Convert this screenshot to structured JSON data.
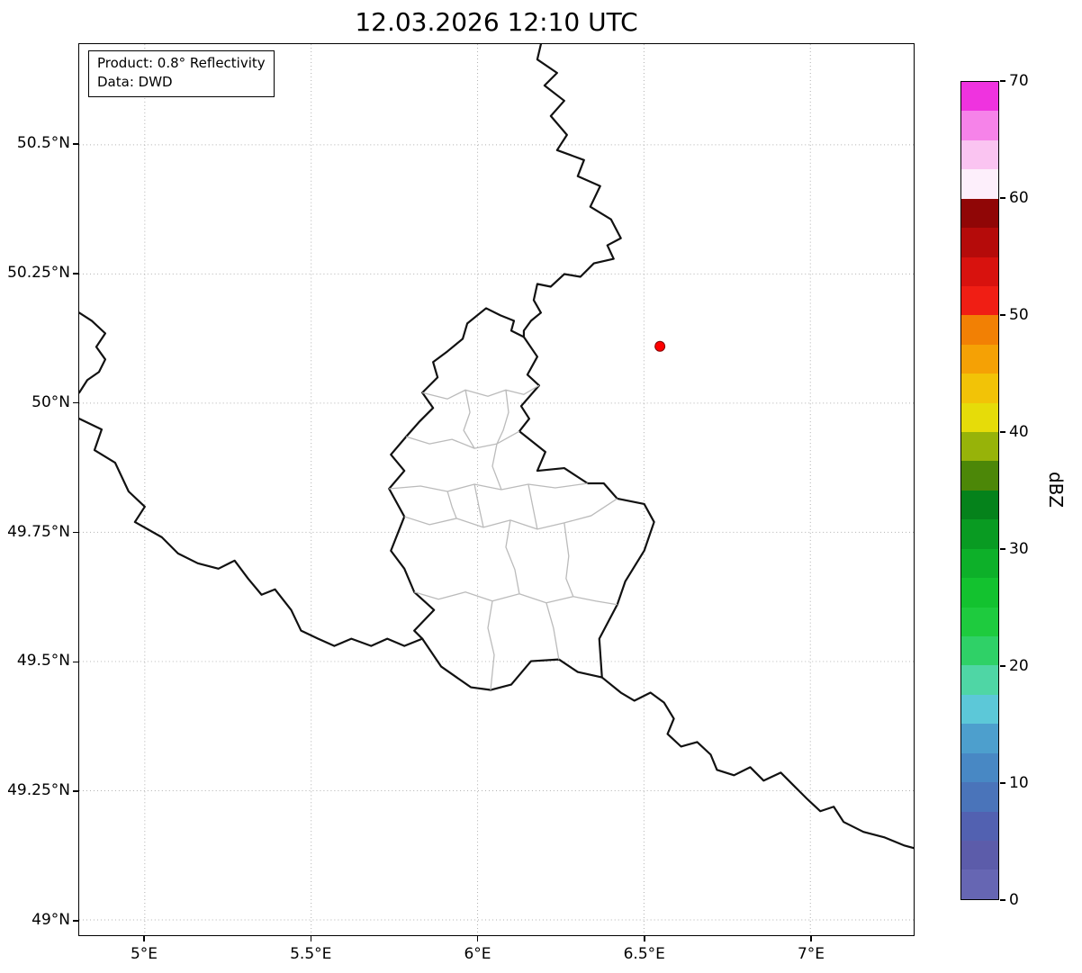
{
  "title": "12.03.2026 12:10 UTC",
  "annotation": {
    "line1": "Product: 0.8° Reflectivity",
    "line2": "Data: DWD"
  },
  "axes": {
    "x_ticks": [
      {
        "value": 5.0,
        "label": "5°E"
      },
      {
        "value": 5.5,
        "label": "5.5°E"
      },
      {
        "value": 6.0,
        "label": "6°E"
      },
      {
        "value": 6.5,
        "label": "6.5°E"
      },
      {
        "value": 7.0,
        "label": "7°E"
      }
    ],
    "y_ticks": [
      {
        "value": 50.5,
        "label": "50.5°N"
      },
      {
        "value": 50.25,
        "label": "50.25°N"
      },
      {
        "value": 50.0,
        "label": "50°N"
      },
      {
        "value": 49.75,
        "label": "49.75°N"
      },
      {
        "value": 49.5,
        "label": "49.5°N"
      },
      {
        "value": 49.25,
        "label": "49.25°N"
      },
      {
        "value": 49.0,
        "label": "49°N"
      }
    ]
  },
  "marker": {
    "lon": 6.548,
    "lat": 50.11,
    "fill": "#ff0000",
    "edge": "#7f0000"
  },
  "colorbar": {
    "label": "dBZ",
    "min": 0,
    "max": 70,
    "segment_step": 2.5,
    "tick_values": [
      0,
      10,
      20,
      30,
      40,
      50,
      60,
      70
    ],
    "colors_bottom_to_top": [
      "#6666b3",
      "#5c5caa",
      "#5261b1",
      "#4a74ba",
      "#4888c4",
      "#4d9fcd",
      "#5cc8d8",
      "#4fd6a5",
      "#2fd167",
      "#1ecb3e",
      "#13c22f",
      "#0db029",
      "#099b22",
      "#05821b",
      "#4c8708",
      "#97b309",
      "#e6dc09",
      "#f2c307",
      "#f5a105",
      "#f28004",
      "#f01e14",
      "#d8120e",
      "#b50b0a",
      "#900606",
      "#fdeffb",
      "#fac4f1",
      "#f683e9",
      "#ef33df"
    ]
  },
  "chart_data": {
    "type": "map",
    "title": "12.03.2026 12:10 UTC",
    "product": "0.8° Reflectivity",
    "data_source": "DWD",
    "extent": {
      "lon_min": 4.8,
      "lon_max": 7.31,
      "lat_min": 48.97,
      "lat_max": 50.69
    },
    "x_ticks": [
      "5°E",
      "5.5°E",
      "6°E",
      "6.5°E",
      "7°E"
    ],
    "y_ticks": [
      "50.5°N",
      "50.25°N",
      "50°N",
      "49.75°N",
      "49.5°N",
      "49.25°N",
      "49°N"
    ],
    "colorbar": {
      "label": "dBZ",
      "min": 0,
      "max": 70,
      "ticks": [
        0,
        10,
        20,
        30,
        40,
        50,
        60,
        70
      ],
      "n_segments": 28
    },
    "markers": [
      {
        "name": "radar-site",
        "lon": 6.548,
        "lat": 50.11,
        "color": "red"
      }
    ],
    "reflectivity_echoes": [],
    "grid": true,
    "features": [
      "national-borders",
      "luxembourg-canton-borders"
    ]
  }
}
